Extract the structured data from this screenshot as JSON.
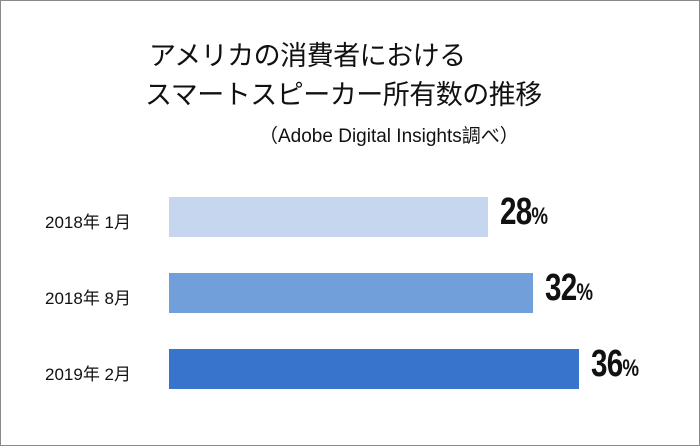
{
  "chart_data": {
    "type": "bar",
    "orientation": "horizontal",
    "title": "アメリカの消費者における スマートスピーカー所有数の推移",
    "title_lines": [
      "アメリカの消費者における",
      "スマートスピーカー所有数の推移"
    ],
    "subtitle": "（Adobe Digital Insights調べ）",
    "categories": [
      "2018年 1月",
      "2018年 8月",
      "2019年 2月"
    ],
    "values": [
      28,
      32,
      36
    ],
    "value_labels": [
      "28",
      "32",
      "36"
    ],
    "unit": "%",
    "colors": [
      "#c5d6ee",
      "#719fda",
      "#3874cb"
    ],
    "xlabel": "",
    "ylabel": "",
    "grid": false,
    "legend": null
  }
}
